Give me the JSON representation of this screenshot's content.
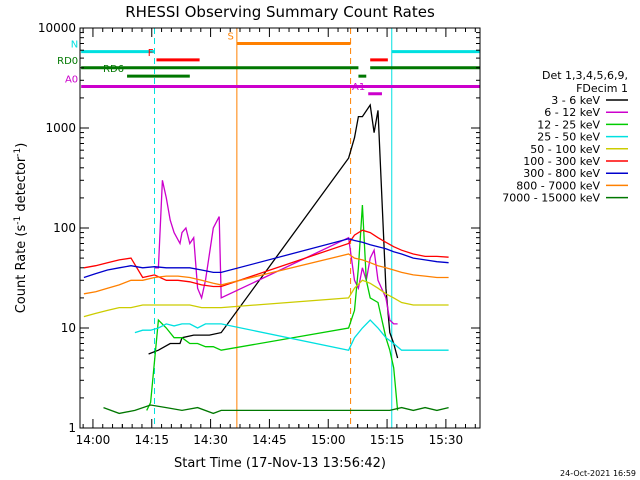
{
  "chart_data": {
    "type": "line",
    "title": "RHESSI Observing Summary Count Rates",
    "xlabel": "Start Time (17-Nov-13 13:56:42)",
    "ylabel_main": "Count Rate (s",
    "ylabel_sup": "-1",
    "ylabel_mid": " detector",
    "ylabel_end": ")",
    "yscale": "log",
    "ylim": [
      1,
      10000
    ],
    "xlim_minutes_after_start": [
      0,
      102
    ],
    "x_tick_labels": [
      "14:00",
      "14:15",
      "14:30",
      "14:45",
      "15:00",
      "15:15",
      "15:30"
    ],
    "x_tick_minutes_after_start": [
      3.3,
      18.3,
      33.3,
      48.3,
      63.3,
      78.3,
      93.3
    ],
    "y_tick_labels": [
      "1",
      "10",
      "100",
      "1000",
      "10000"
    ],
    "y_tick_values": [
      1,
      10,
      100,
      1000,
      10000
    ],
    "legend_header": [
      "Det 1,3,4,5,6,9,",
      "FDecim 1"
    ],
    "legend_position": "right",
    "timestamp": "24-Oct-2021 16:59",
    "series": [
      {
        "name": "3 - 6 keV",
        "color": "#000000",
        "x": [
          17.5,
          20,
          23,
          25.5,
          26,
          29,
          31,
          33,
          36,
          68.5,
          70,
          71,
          72,
          74,
          75,
          76,
          78,
          79,
          80,
          81
        ],
        "y": [
          5.5,
          6,
          7,
          7,
          8,
          8.5,
          8.5,
          8.5,
          9,
          500,
          800,
          1300,
          1300,
          1700,
          900,
          1500,
          25,
          9,
          7,
          5
        ]
      },
      {
        "name": "6 - 12 keV",
        "color": "#cc00cc",
        "x": [
          19,
          20,
          21,
          22,
          23,
          24,
          25.5,
          26,
          27,
          28,
          29,
          30,
          31,
          32,
          34,
          35.5,
          36,
          68.5,
          70,
          71,
          72,
          73,
          74,
          75,
          76,
          78,
          79,
          80,
          81
        ],
        "y": [
          40,
          40,
          300,
          200,
          120,
          90,
          70,
          90,
          100,
          70,
          80,
          25,
          20,
          30,
          100,
          130,
          20,
          80,
          30,
          25,
          40,
          30,
          50,
          60,
          30,
          20,
          12,
          11,
          11
        ]
      },
      {
        "name": "12 - 25 keV",
        "color": "#00cc00",
        "x": [
          17,
          18,
          20,
          22,
          24,
          26,
          28,
          30,
          32,
          34,
          36,
          68.5,
          70,
          71,
          72,
          73,
          74,
          76,
          78,
          79,
          80,
          81
        ],
        "y": [
          1.5,
          1.8,
          12,
          10,
          8,
          8,
          7,
          7,
          6.5,
          6.5,
          6,
          10,
          15,
          40,
          170,
          30,
          20,
          18,
          8,
          6,
          4,
          1.5
        ]
      },
      {
        "name": "25 - 50 keV",
        "color": "#00e0e0",
        "x": [
          14,
          16,
          18,
          20,
          22,
          24,
          26,
          28,
          30,
          32,
          34,
          36,
          68.5,
          70,
          72,
          74,
          76,
          78,
          80,
          82,
          85,
          88,
          91,
          94
        ],
        "y": [
          9,
          9.5,
          9.5,
          10,
          11,
          10.5,
          11,
          11,
          10,
          11,
          11,
          11,
          6,
          8,
          10,
          12,
          10,
          8,
          7,
          6,
          6,
          6,
          6,
          6
        ]
      },
      {
        "name": "50 - 100 keV",
        "color": "#cccc00",
        "x": [
          1,
          4,
          7,
          10,
          13,
          16,
          19,
          22,
          25,
          28,
          31,
          34,
          36,
          68.5,
          70,
          72,
          74,
          76,
          78,
          80,
          82,
          85,
          88,
          91,
          94
        ],
        "y": [
          13,
          14,
          15,
          16,
          16,
          17,
          17,
          17,
          17,
          17,
          16,
          16,
          16,
          20,
          25,
          30,
          28,
          25,
          22,
          20,
          18,
          17,
          17,
          17,
          17
        ]
      },
      {
        "name": "100 - 300 keV",
        "color": "#ff0000",
        "x": [
          1,
          4,
          7,
          10,
          13,
          16,
          19,
          22,
          25,
          28,
          31,
          34,
          36,
          68.5,
          70,
          72,
          74,
          76,
          78,
          80,
          82,
          85,
          88,
          91,
          94
        ],
        "y": [
          40,
          42,
          45,
          48,
          50,
          32,
          34,
          30,
          30,
          29,
          27,
          26,
          26,
          70,
          85,
          95,
          90,
          80,
          72,
          65,
          60,
          55,
          52,
          52,
          51
        ]
      },
      {
        "name": "300 - 800 keV",
        "color": "#0000cc",
        "x": [
          1,
          4,
          7,
          10,
          13,
          16,
          19,
          22,
          25,
          28,
          31,
          34,
          36,
          68.5,
          70,
          72,
          74,
          76,
          78,
          80,
          82,
          85,
          88,
          91,
          94
        ],
        "y": [
          32,
          35,
          38,
          40,
          42,
          40,
          41,
          40,
          40,
          40,
          38,
          36,
          36,
          78,
          75,
          72,
          68,
          65,
          62,
          58,
          55,
          50,
          48,
          46,
          45
        ]
      },
      {
        "name": "800 - 7000 keV",
        "color": "#ff8000",
        "x": [
          1,
          4,
          7,
          10,
          13,
          16,
          19,
          22,
          25,
          28,
          31,
          34,
          36,
          68.5,
          70,
          72,
          74,
          76,
          78,
          80,
          82,
          85,
          88,
          91,
          94
        ],
        "y": [
          22,
          23,
          25,
          27,
          30,
          30,
          32,
          33,
          33,
          32,
          30,
          28,
          27,
          55,
          50,
          48,
          45,
          42,
          40,
          38,
          36,
          34,
          33,
          32,
          32
        ]
      },
      {
        "name": "7000 - 15000 keV",
        "color": "#007700",
        "x": [
          6,
          10,
          14,
          18,
          22,
          26,
          30,
          34,
          36,
          79,
          82,
          85,
          88,
          91,
          94
        ],
        "y": [
          1.6,
          1.4,
          1.5,
          1.7,
          1.6,
          1.5,
          1.6,
          1.4,
          1.5,
          1.5,
          1.6,
          1.5,
          1.6,
          1.5,
          1.6
        ]
      }
    ],
    "flags": [
      {
        "label": "N",
        "color": "#00e0e0",
        "segments": [
          [
            0.3,
            19.0
          ],
          [
            79.5,
            102.0
          ]
        ],
        "value": 5800
      },
      {
        "label": "S",
        "color": "#ff8000",
        "segments": [
          [
            40.0,
            69.0
          ]
        ],
        "value": 7000
      },
      {
        "label": "F",
        "color": "#ff0000",
        "segments": [
          [
            19.5,
            30.5
          ],
          [
            74.0,
            78.5
          ]
        ],
        "value": 4800
      },
      {
        "label": "RD0",
        "color": "#007700",
        "segments": [
          [
            0.3,
            71.0
          ],
          [
            74.0,
            102.0
          ]
        ],
        "value": 4000
      },
      {
        "label": "RD6",
        "color": "#007700",
        "segments": [
          [
            12.0,
            28.0
          ],
          [
            71.0,
            73.0
          ]
        ],
        "value": 3300
      },
      {
        "label": "A0",
        "color": "#cc00cc",
        "segments": [
          [
            0.3,
            102.0
          ]
        ],
        "value": 2600
      },
      {
        "label": "A1",
        "color": "#cc00cc",
        "segments": [
          [
            73.5,
            77.0
          ]
        ],
        "value": 2200
      }
    ],
    "vlines": [
      {
        "x": 19.0,
        "color": "#00e0e0",
        "style": "dashed"
      },
      {
        "x": 40.0,
        "color": "#ff8000",
        "style": "solid"
      },
      {
        "x": 69.0,
        "color": "#ff8000",
        "style": "dashed"
      },
      {
        "x": 79.5,
        "color": "#00e0e0",
        "style": "solid"
      },
      {
        "x": 102.0,
        "color": "#00e0e0",
        "style": "dashed"
      }
    ]
  }
}
